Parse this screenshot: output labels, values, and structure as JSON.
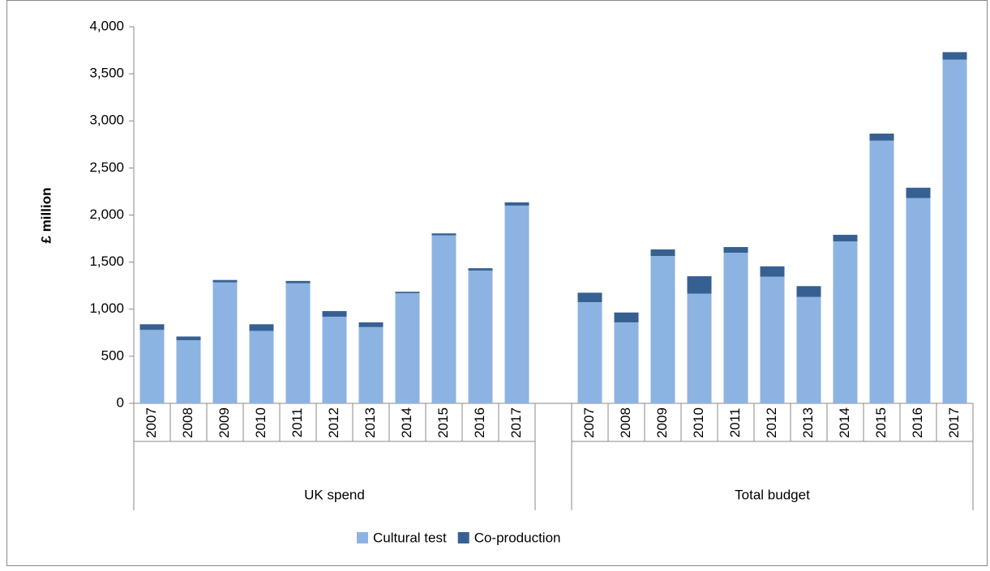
{
  "chart_data": {
    "type": "stacked-bar",
    "y_label": "£ million",
    "categories": [
      "2007",
      "2008",
      "2009",
      "2010",
      "2011",
      "2012",
      "2013",
      "2014",
      "2015",
      "2016",
      "2017",
      null,
      "2007",
      "2008",
      "2009",
      "2010",
      "2011",
      "2012",
      "2013",
      "2014",
      "2015",
      "2016",
      "2017"
    ],
    "groups": [
      "UK spend",
      "Total budget"
    ],
    "series": [
      {
        "name": "Cultural test",
        "color": "#8db3e2",
        "values": [
          780,
          670,
          1285,
          770,
          1275,
          920,
          810,
          1170,
          1785,
          1410,
          2100,
          null,
          1075,
          860,
          1565,
          1165,
          1600,
          1345,
          1130,
          1720,
          2790,
          2180,
          3650
        ]
      },
      {
        "name": "Co-production",
        "color": "#376092",
        "values": [
          60,
          40,
          25,
          70,
          25,
          60,
          50,
          15,
          20,
          25,
          35,
          null,
          100,
          105,
          70,
          185,
          60,
          110,
          115,
          70,
          75,
          110,
          80
        ]
      }
    ],
    "ylim": [
      0,
      4000
    ],
    "yticks": [
      0,
      500,
      {
        "value": 1000,
        "label": "1,000"
      },
      {
        "value": 1500,
        "label": "1,500"
      },
      {
        "value": 2000,
        "label": "2,000"
      },
      {
        "value": 2500,
        "label": "2,500"
      },
      {
        "value": 3000,
        "label": "3,000"
      },
      {
        "value": 3500,
        "label": "3,500"
      },
      {
        "value": 4000,
        "label": "4,000"
      }
    ],
    "legend": "bottom"
  }
}
